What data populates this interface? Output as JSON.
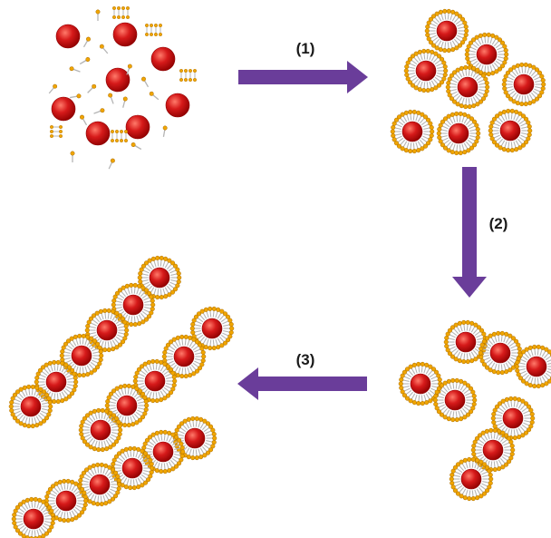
{
  "diagram": {
    "steps": [
      {
        "label": "(1)"
      },
      {
        "label": "(2)"
      },
      {
        "label": "(3)"
      }
    ],
    "colors": {
      "arrow": "#6a3d9a",
      "particle_core": "#d61a1a",
      "particle_core_highlight": "#ff7a6a",
      "particle_core_shadow": "#8e0000",
      "ligand_head": "#f0a500",
      "ligand_head_outline": "#a86a00",
      "ligand_tail": "#b5b5b5"
    },
    "icons": {
      "arrow": "thick-arrow-icon",
      "nanoparticle": "nanoparticle-icon",
      "coated_nanoparticle": "ligand-coated-nanoparticle-icon",
      "free_ligand": "surfactant-molecule-icon"
    }
  }
}
